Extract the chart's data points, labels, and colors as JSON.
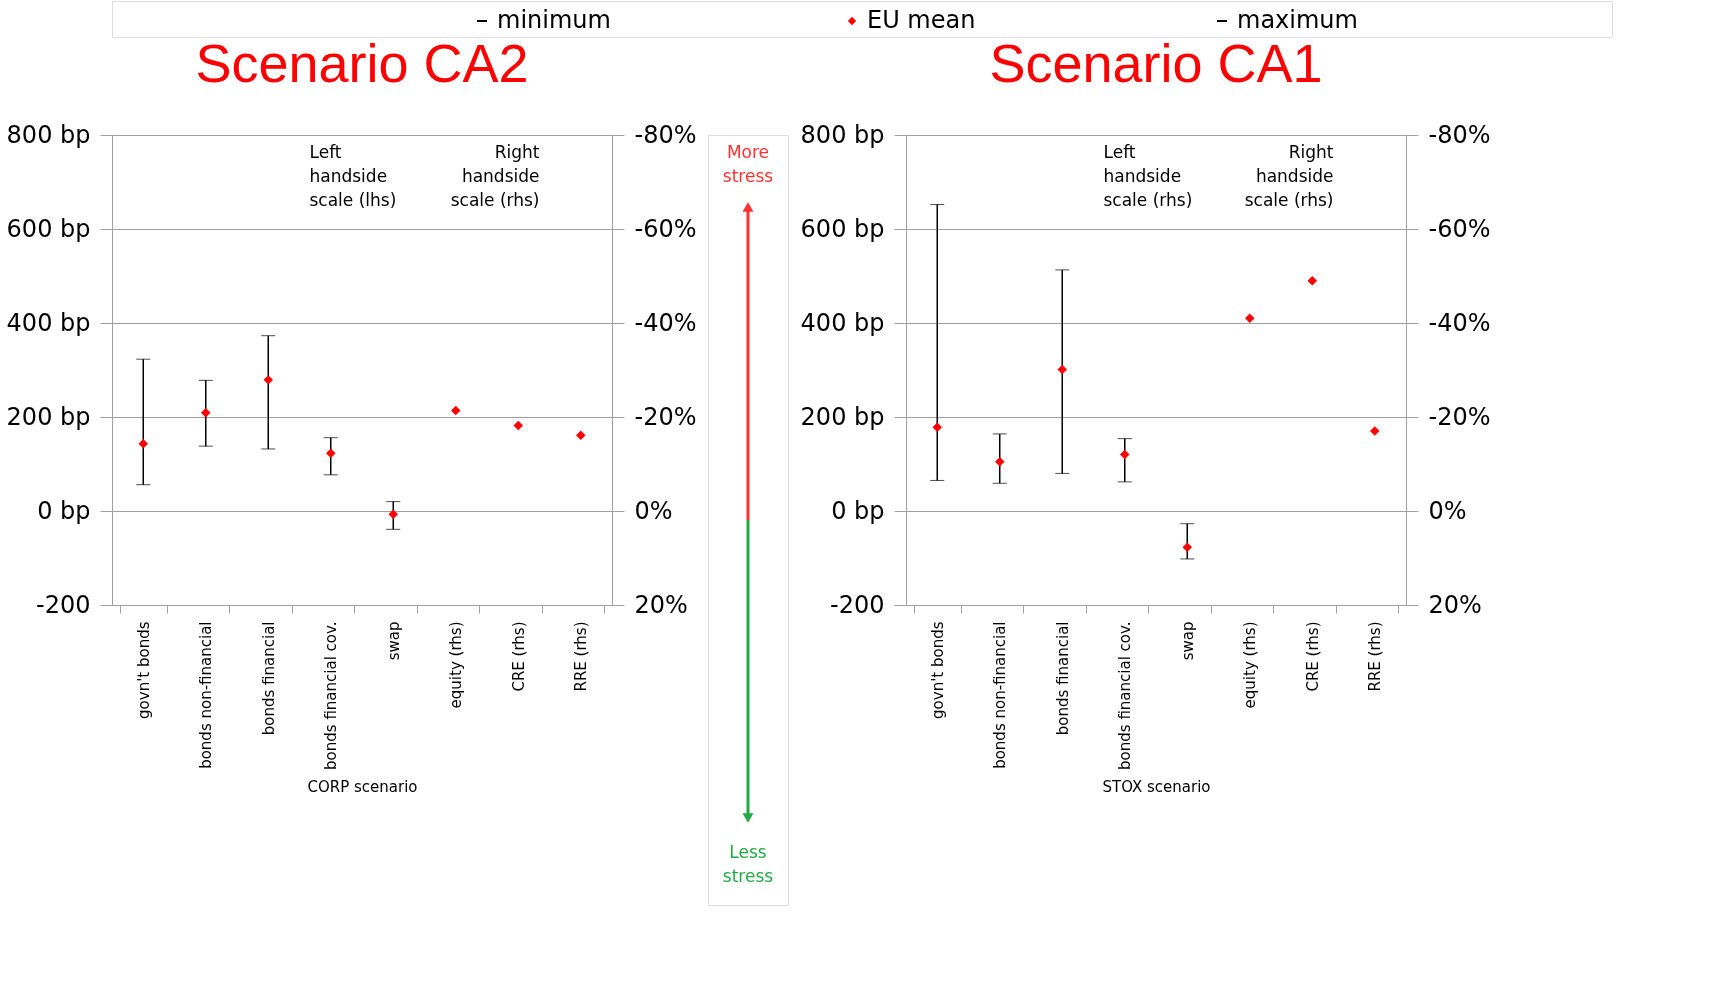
{
  "chart_data": [
    {
      "type": "scatter",
      "title": "Scenario CA2",
      "xlabel": "CORP scenario",
      "categories": [
        "govn't bonds",
        "bonds non-financial",
        "bonds financial",
        "bonds financial cov.",
        "swap",
        "equity (rhs)",
        "CRE (rhs)",
        "RRE (rhs)"
      ],
      "series": [
        {
          "name": "EU mean",
          "color": "#ff0000",
          "values": [
            143,
            209,
            279,
            123,
            -7,
            null,
            null,
            null
          ],
          "errors": [
            [
              56,
              323
            ],
            [
              138,
              278
            ],
            [
              132,
              373
            ],
            [
              77,
              156
            ],
            [
              -39,
              20
            ],
            null,
            null,
            null
          ]
        },
        {
          "color": "#ff0000",
          "axis": "y2",
          "values": [
            null,
            null,
            null,
            null,
            null,
            -21.4,
            -18.2,
            -16.1
          ]
        }
      ],
      "ylim": [
        -200,
        800
      ],
      "yticks": [
        -200,
        {
          "value": 0,
          "label": "0 bp"
        },
        {
          "value": 200,
          "label": "200 bp"
        },
        {
          "value": 400,
          "label": "400 bp"
        },
        {
          "value": 600,
          "label": "600 bp"
        },
        {
          "value": 800,
          "label": "800 bp"
        }
      ],
      "y2lim": [
        20,
        -80
      ],
      "y2ticks": [
        {
          "value": 20,
          "label": "20%"
        },
        {
          "value": 0,
          "label": "0%"
        },
        {
          "value": -20,
          "label": "-20%"
        },
        {
          "value": -40,
          "label": "-40%"
        },
        {
          "value": -60,
          "label": "-60%"
        },
        {
          "value": -80,
          "label": "-80%"
        }
      ],
      "annotations": [
        "minimum",
        "maximum",
        "Left handside scale (lhs)",
        "Right handside scale (rhs)",
        "More stress",
        "Less stress"
      ],
      "marker": "diamond",
      "grid": "y",
      "legend": "top"
    },
    {
      "type": "scatter",
      "title": "Scenario CA1",
      "xlabel": "STOX scenario",
      "categories": [
        "govn't bonds",
        "bonds non-financial",
        "bonds financial",
        "bonds financial cov.",
        "swap",
        "equity (rhs)",
        "CRE (rhs)",
        "RRE (rhs)"
      ],
      "series": [
        {
          "color": "#ff0000",
          "values": [
            178,
            105,
            301,
            120,
            -77,
            null,
            null,
            null
          ],
          "errors": [
            [
              65,
              652
            ],
            [
              59,
              164
            ],
            [
              80,
              513
            ],
            [
              62,
              154
            ],
            [
              -102,
              -27
            ],
            null,
            null,
            null
          ]
        },
        {
          "color": "#ff0000",
          "axis": "y2",
          "values": [
            null,
            null,
            null,
            null,
            null,
            -41,
            -49,
            -17
          ]
        }
      ],
      "ylim": [
        -200,
        800
      ],
      "yticks": [
        -200,
        {
          "value": 0,
          "label": "0 bp"
        },
        {
          "value": 200,
          "label": "200 bp"
        },
        {
          "value": 400,
          "label": "400 bp"
        },
        {
          "value": 600,
          "label": "600 bp"
        },
        {
          "value": 800,
          "label": "800 bp"
        }
      ],
      "y2lim": [
        20,
        -80
      ],
      "y2ticks": [
        {
          "value": 20,
          "label": "20%"
        },
        {
          "value": 0,
          "label": "0%"
        },
        {
          "value": -20,
          "label": "-20%"
        },
        {
          "value": -40,
          "label": "-40%"
        },
        {
          "value": -60,
          "label": "-60%"
        },
        {
          "value": -80,
          "label": "-80%"
        }
      ],
      "annotations": [
        "Left handside scale (rhs)",
        "Right handside scale (rhs)"
      ],
      "marker": "diamond",
      "grid": "y"
    }
  ]
}
